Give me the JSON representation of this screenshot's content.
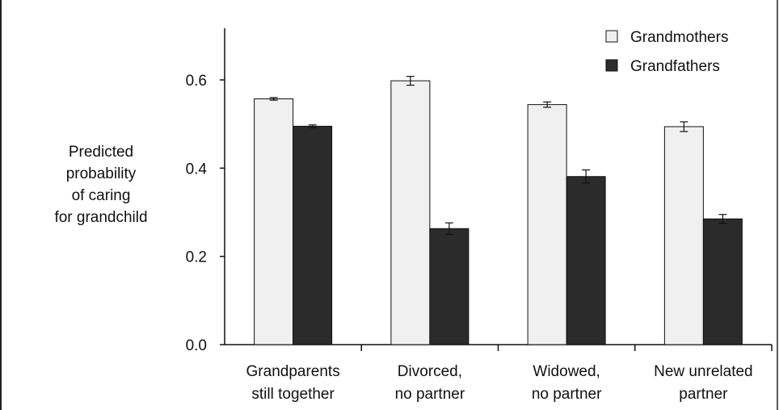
{
  "chart_data": {
    "type": "bar",
    "ylabel_lines": [
      "Predicted",
      "probability",
      "of caring",
      "for grandchild"
    ],
    "yticks": [
      "0.0",
      "0.2",
      "0.4",
      "0.6"
    ],
    "ytick_values": [
      0.0,
      0.2,
      0.4,
      0.6
    ],
    "ylim": [
      0,
      0.72
    ],
    "categories": [
      [
        "Grandparents",
        "still together"
      ],
      [
        "Divorced,",
        "no partner"
      ],
      [
        "Widowed,",
        "no partner"
      ],
      [
        "New unrelated",
        "partner"
      ]
    ],
    "series": [
      {
        "name": "Grandmothers",
        "color": "#f0f0f0",
        "values": [
          0.557,
          0.598,
          0.544,
          0.494
        ],
        "errors": [
          0.003,
          0.01,
          0.006,
          0.011
        ]
      },
      {
        "name": "Grandfathers",
        "color": "#2b2b2b",
        "values": [
          0.495,
          0.263,
          0.381,
          0.285
        ],
        "errors": [
          0.003,
          0.013,
          0.015,
          0.01
        ]
      }
    ],
    "legend_position": "top-right",
    "grid": false
  }
}
